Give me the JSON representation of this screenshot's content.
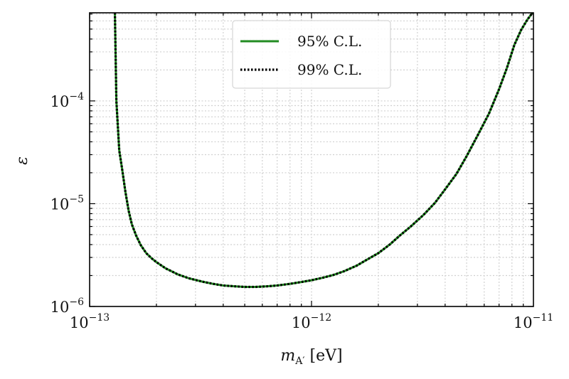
{
  "chart_data": {
    "type": "line",
    "title": "",
    "xlabel": {
      "var": "m",
      "sub": "A′",
      "unit": " [eV]"
    },
    "ylabel": "ε",
    "xscale": "log",
    "yscale": "log",
    "xlim": [
      1e-13,
      1e-11
    ],
    "ylim": [
      1e-06,
      0.00072
    ],
    "x_ticks": [
      {
        "value": 1e-13,
        "base": "10",
        "exp": "−13"
      },
      {
        "value": 1e-12,
        "base": "10",
        "exp": "−12"
      },
      {
        "value": 1e-11,
        "base": "10",
        "exp": "−11"
      }
    ],
    "y_ticks": [
      {
        "value": 1e-06,
        "base": "10",
        "exp": "−6"
      },
      {
        "value": 1e-05,
        "base": "10",
        "exp": "−5"
      },
      {
        "value": 0.0001,
        "base": "10",
        "exp": "−4"
      }
    ],
    "grid": true,
    "legend_position": "top-center",
    "series": [
      {
        "name": "95% C.L.",
        "color": "#228B22",
        "style": "solid",
        "x": [
          1.3e-13,
          1.32e-13,
          1.36e-13,
          1.4e-13,
          1.45e-13,
          1.5e-13,
          1.55e-13,
          1.62e-13,
          1.7e-13,
          1.8e-13,
          1.9e-13,
          2e-13,
          2.2e-13,
          2.5e-13,
          2.8e-13,
          3.2e-13,
          3.6e-13,
          4e-13,
          4.5e-13,
          5e-13,
          5.6e-13,
          6.3e-13,
          7e-13,
          8e-13,
          9e-13,
          1e-12,
          1.12e-12,
          1.25e-12,
          1.4e-12,
          1.6e-12,
          1.8e-12,
          2e-12,
          2.25e-12,
          2.5e-12,
          2.8e-12,
          3.2e-12,
          3.6e-12,
          4e-12,
          4.5e-12,
          5e-12,
          5.6e-12,
          6.3e-12,
          7e-12,
          7.6e-12,
          8.2e-12,
          8.8e-12,
          9.4e-12,
          1e-11
        ],
        "y": [
          0.00072,
          0.0001,
          3.3e-05,
          2.2e-05,
          1.3e-05,
          8.5e-06,
          6.3e-06,
          4.9e-06,
          3.95e-06,
          3.3e-06,
          2.95e-06,
          2.7e-06,
          2.35e-06,
          2.05e-06,
          1.88e-06,
          1.75e-06,
          1.66e-06,
          1.6e-06,
          1.57e-06,
          1.55e-06,
          1.55e-06,
          1.57e-06,
          1.6e-06,
          1.66e-06,
          1.73e-06,
          1.8e-06,
          1.9e-06,
          2.02e-06,
          2.2e-06,
          2.5e-06,
          2.9e-06,
          3.3e-06,
          4e-06,
          4.9e-06,
          6e-06,
          7.8e-06,
          1.02e-05,
          1.38e-05,
          1.95e-05,
          2.9e-05,
          4.6e-05,
          7.5e-05,
          0.00013,
          0.00021,
          0.00035,
          0.00049,
          0.00062,
          0.00074
        ]
      },
      {
        "name": "99% C.L.",
        "color": "#000000",
        "style": "dotted",
        "x": [
          1.3e-13,
          1.32e-13,
          1.36e-13,
          1.4e-13,
          1.45e-13,
          1.5e-13,
          1.55e-13,
          1.62e-13,
          1.7e-13,
          1.8e-13,
          1.9e-13,
          2e-13,
          2.2e-13,
          2.5e-13,
          2.8e-13,
          3.2e-13,
          3.6e-13,
          4e-13,
          4.5e-13,
          5e-13,
          5.6e-13,
          6.3e-13,
          7e-13,
          8e-13,
          9e-13,
          1e-12,
          1.12e-12,
          1.25e-12,
          1.4e-12,
          1.6e-12,
          1.8e-12,
          2e-12,
          2.25e-12,
          2.5e-12,
          2.8e-12,
          3.2e-12,
          3.6e-12,
          4e-12,
          4.5e-12,
          5e-12,
          5.6e-12,
          6.3e-12,
          7e-12,
          7.6e-12,
          8.2e-12,
          8.8e-12,
          9.4e-12,
          1e-11
        ],
        "y": [
          0.00072,
          0.0001,
          3.3e-05,
          2.2e-05,
          1.3e-05,
          8.5e-06,
          6.3e-06,
          4.9e-06,
          3.95e-06,
          3.3e-06,
          2.95e-06,
          2.7e-06,
          2.35e-06,
          2.05e-06,
          1.88e-06,
          1.75e-06,
          1.66e-06,
          1.6e-06,
          1.57e-06,
          1.55e-06,
          1.55e-06,
          1.57e-06,
          1.6e-06,
          1.66e-06,
          1.73e-06,
          1.8e-06,
          1.9e-06,
          2.02e-06,
          2.2e-06,
          2.5e-06,
          2.9e-06,
          3.3e-06,
          4e-06,
          4.9e-06,
          6e-06,
          7.8e-06,
          1.02e-05,
          1.38e-05,
          1.95e-05,
          2.9e-05,
          4.6e-05,
          7.5e-05,
          0.00013,
          0.00021,
          0.00035,
          0.00049,
          0.00062,
          0.00074
        ]
      }
    ]
  }
}
